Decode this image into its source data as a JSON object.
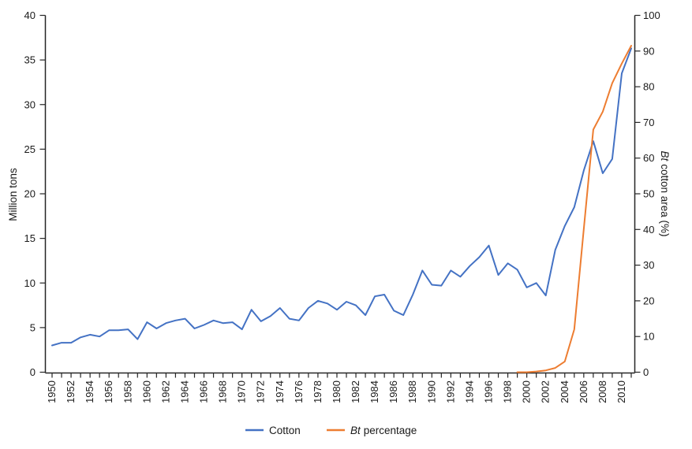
{
  "figure": {
    "background": "#ffffff",
    "axis_color": "#262626"
  },
  "axes": {
    "left_title": "Million tons",
    "right_title_italic": "Bt",
    "right_title_rest": "cotton area (%)"
  },
  "legend": {
    "cotton_label": "Cotton",
    "bt_label_italic": "Bt",
    "bt_label_rest": "percentage"
  },
  "chart_data": {
    "type": "line",
    "title": "",
    "x": [
      1950,
      1951,
      1952,
      1953,
      1954,
      1955,
      1956,
      1957,
      1958,
      1959,
      1960,
      1961,
      1962,
      1963,
      1964,
      1965,
      1966,
      1967,
      1968,
      1969,
      1970,
      1971,
      1972,
      1973,
      1974,
      1975,
      1976,
      1977,
      1978,
      1979,
      1980,
      1981,
      1982,
      1983,
      1984,
      1985,
      1986,
      1987,
      1988,
      1989,
      1990,
      1991,
      1992,
      1993,
      1994,
      1995,
      1996,
      1997,
      1998,
      1999,
      2000,
      2001,
      2002,
      2003,
      2004,
      2005,
      2006,
      2007,
      2008,
      2009,
      2010,
      2011
    ],
    "series": [
      {
        "name": "Cotton",
        "axis": "left",
        "color": "#4472C4",
        "values": [
          3.0,
          3.3,
          3.3,
          3.9,
          4.2,
          4.0,
          4.7,
          4.7,
          4.8,
          3.7,
          5.6,
          4.9,
          5.5,
          5.8,
          6.0,
          4.9,
          5.3,
          5.8,
          5.5,
          5.6,
          4.8,
          7.0,
          5.7,
          6.3,
          7.2,
          6.0,
          5.8,
          7.2,
          8.0,
          7.7,
          7.0,
          7.9,
          7.5,
          6.4,
          8.5,
          8.7,
          6.9,
          6.4,
          8.7,
          11.4,
          9.8,
          9.7,
          11.4,
          10.7,
          11.9,
          12.9,
          14.2,
          10.9,
          12.2,
          11.5,
          9.5,
          10.0,
          8.6,
          13.7,
          16.4,
          18.5,
          22.6,
          25.9,
          22.3,
          23.9,
          33.5,
          36.3
        ]
      },
      {
        "name": "Bt percentage",
        "axis": "right",
        "color": "#ED7D31",
        "values": [
          null,
          null,
          null,
          null,
          null,
          null,
          null,
          null,
          null,
          null,
          null,
          null,
          null,
          null,
          null,
          null,
          null,
          null,
          null,
          null,
          null,
          null,
          null,
          null,
          null,
          null,
          null,
          null,
          null,
          null,
          null,
          null,
          null,
          null,
          null,
          null,
          null,
          null,
          null,
          null,
          null,
          null,
          null,
          null,
          null,
          null,
          null,
          null,
          null,
          0,
          0,
          0.2,
          0.5,
          1.2,
          3,
          12,
          40,
          68,
          73,
          81,
          86.5,
          91.5
        ]
      }
    ],
    "left_axis": {
      "label": "Million tons",
      "min": 0,
      "max": 40,
      "ticks": [
        0,
        5,
        10,
        15,
        20,
        25,
        30,
        35,
        40
      ]
    },
    "right_axis": {
      "label": "Bt cotton area (%)",
      "min": 0,
      "max": 100,
      "ticks": [
        0,
        10,
        20,
        30,
        40,
        50,
        60,
        70,
        80,
        90,
        100
      ]
    },
    "x_axis": {
      "tick_every_year": true,
      "labeled_ticks": [
        1950,
        1952,
        1954,
        1956,
        1958,
        1960,
        1962,
        1964,
        1966,
        1968,
        1970,
        1972,
        1974,
        1976,
        1978,
        1980,
        1982,
        1984,
        1986,
        1988,
        1990,
        1992,
        1994,
        1996,
        1998,
        2000,
        2002,
        2004,
        2006,
        2008,
        2010
      ]
    },
    "grid": false,
    "legend_position": "bottom",
    "xlabel": "",
    "ylabel": "Million tons",
    "y2label": "Bt cotton area (%)"
  }
}
